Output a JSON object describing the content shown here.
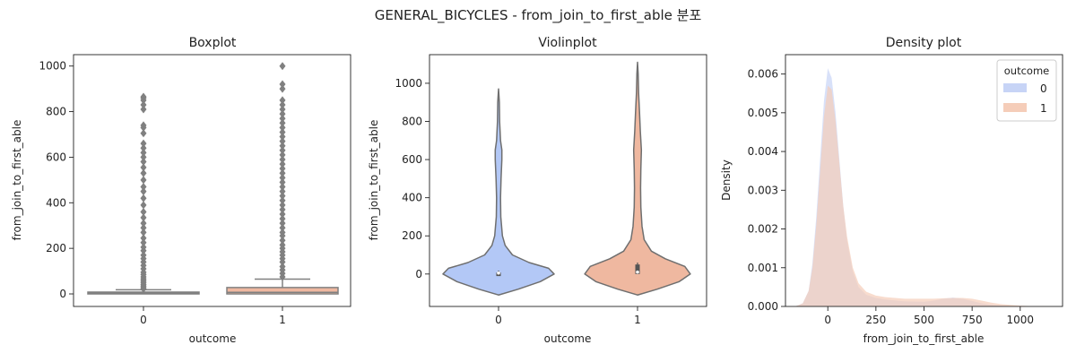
{
  "suptitle": "GENERAL_BICYCLES - from_join_to_first_able 분포",
  "colors": {
    "outcome_0": "#b3c8f6",
    "outcome_1": "#efb8a0",
    "median_line": "#808080",
    "box_0_fill": "#b3c8f6",
    "box_1_fill": "#efb8a0",
    "density_0": "#c7d4f6",
    "density_1": "#f5cdb9"
  },
  "chart_data": [
    {
      "type": "boxplot",
      "title": "Boxplot",
      "xlabel": "outcome",
      "ylabel": "from_join_to_first_able",
      "categories": [
        "0",
        "1"
      ],
      "ylim": [
        -55,
        1050
      ],
      "yticks": [
        0,
        200,
        400,
        600,
        800,
        1000
      ],
      "boxes": [
        {
          "category": "0",
          "q1": 0,
          "median": 5,
          "q3": 8,
          "whisker_low": 0,
          "whisker_high": 18,
          "outliers": [
            22,
            28,
            35,
            42,
            50,
            58,
            66,
            75,
            85,
            95,
            110,
            125,
            140,
            155,
            170,
            190,
            205,
            225,
            245,
            270,
            290,
            310,
            335,
            360,
            390,
            420,
            450,
            470,
            500,
            530,
            555,
            580,
            600,
            620,
            640,
            660,
            705,
            730,
            740,
            810,
            830,
            850,
            860,
            865
          ]
        },
        {
          "category": "1",
          "q1": 0,
          "median": 7,
          "q3": 28,
          "whisker_low": 0,
          "whisker_high": 65,
          "outliers": [
            75,
            90,
            105,
            120,
            140,
            155,
            170,
            185,
            200,
            215,
            235,
            255,
            270,
            290,
            310,
            330,
            350,
            370,
            390,
            410,
            430,
            450,
            470,
            490,
            510,
            530,
            550,
            570,
            590,
            610,
            630,
            650,
            670,
            690,
            710,
            730,
            750,
            770,
            790,
            810,
            830,
            850,
            900,
            920,
            1000
          ]
        }
      ]
    },
    {
      "type": "violin",
      "title": "Violinplot",
      "xlabel": "outcome",
      "ylabel": "from_join_to_first_able",
      "categories": [
        "0",
        "1"
      ],
      "ylim": [
        -170,
        1150
      ],
      "yticks": [
        0,
        200,
        400,
        600,
        800,
        1000
      ],
      "violins": [
        {
          "category": "0",
          "min": -110,
          "max": 970,
          "q1": 0,
          "median": 5,
          "q3": 8,
          "profile": [
            [
              -110,
              0.0
            ],
            [
              -80,
              0.35
            ],
            [
              -40,
              0.75
            ],
            [
              0,
              1.0
            ],
            [
              30,
              0.9
            ],
            [
              60,
              0.55
            ],
            [
              100,
              0.25
            ],
            [
              150,
              0.12
            ],
            [
              200,
              0.07
            ],
            [
              300,
              0.04
            ],
            [
              400,
              0.035
            ],
            [
              500,
              0.045
            ],
            [
              600,
              0.06
            ],
            [
              650,
              0.06
            ],
            [
              700,
              0.035
            ],
            [
              800,
              0.02
            ],
            [
              900,
              0.015
            ],
            [
              970,
              0.0
            ]
          ]
        },
        {
          "category": "1",
          "min": -110,
          "max": 1110,
          "q1": 0,
          "median": 10,
          "q3": 50,
          "profile": [
            [
              -110,
              0.0
            ],
            [
              -80,
              0.35
            ],
            [
              -40,
              0.75
            ],
            [
              0,
              0.95
            ],
            [
              40,
              0.85
            ],
            [
              80,
              0.5
            ],
            [
              120,
              0.25
            ],
            [
              180,
              0.12
            ],
            [
              250,
              0.08
            ],
            [
              350,
              0.06
            ],
            [
              450,
              0.055
            ],
            [
              550,
              0.06
            ],
            [
              650,
              0.07
            ],
            [
              750,
              0.05
            ],
            [
              850,
              0.035
            ],
            [
              950,
              0.02
            ],
            [
              1050,
              0.012
            ],
            [
              1110,
              0.0
            ]
          ]
        }
      ]
    },
    {
      "type": "area",
      "title": "Density plot",
      "xlabel": "from_join_to_first_able",
      "ylabel": "Density",
      "xlim": [
        -220,
        1220
      ],
      "ylim": [
        0,
        0.0065
      ],
      "xticks": [
        0,
        250,
        500,
        750,
        1000
      ],
      "ytick_labels": [
        "0.000",
        "0.001",
        "0.002",
        "0.003",
        "0.004",
        "0.005",
        "0.006"
      ],
      "yticks": [
        0,
        0.001,
        0.002,
        0.003,
        0.004,
        0.005,
        0.006
      ],
      "legend": {
        "title": "outcome",
        "placement": "top-right"
      },
      "series": [
        {
          "name": "0",
          "x": [
            -170,
            -130,
            -100,
            -80,
            -60,
            -40,
            -20,
            0,
            20,
            40,
            60,
            80,
            100,
            130,
            160,
            200,
            250,
            300,
            400,
            500,
            550,
            600,
            650,
            700,
            750,
            800,
            850,
            900,
            950,
            1000,
            1050
          ],
          "y": [
            0,
            8e-05,
            0.0004,
            0.0011,
            0.0023,
            0.0038,
            0.0053,
            0.00615,
            0.0059,
            0.005,
            0.0038,
            0.0026,
            0.0017,
            0.0009,
            0.0005,
            0.0003,
            0.00022,
            0.00018,
            0.00013,
            0.00012,
            0.00015,
            0.0002,
            0.00023,
            0.0002,
            0.00014,
            8e-05,
            4e-05,
            2e-05,
            1e-05,
            5e-06,
            0
          ]
        },
        {
          "name": "1",
          "x": [
            -170,
            -130,
            -100,
            -80,
            -60,
            -40,
            -20,
            0,
            20,
            40,
            60,
            80,
            100,
            130,
            160,
            200,
            250,
            300,
            400,
            500,
            550,
            600,
            650,
            700,
            750,
            800,
            850,
            900,
            950,
            1000,
            1050,
            1100,
            1150
          ],
          "y": [
            0,
            8e-05,
            0.0004,
            0.001,
            0.0021,
            0.0035,
            0.0049,
            0.0057,
            0.0056,
            0.0048,
            0.0037,
            0.0026,
            0.0018,
            0.001,
            0.0006,
            0.00038,
            0.00028,
            0.00024,
            0.0002,
            0.0002,
            0.0002,
            0.00021,
            0.00022,
            0.00022,
            0.0002,
            0.00015,
            0.0001,
            6e-05,
            4e-05,
            2e-05,
            1e-05,
            5e-06,
            0
          ]
        }
      ]
    }
  ]
}
